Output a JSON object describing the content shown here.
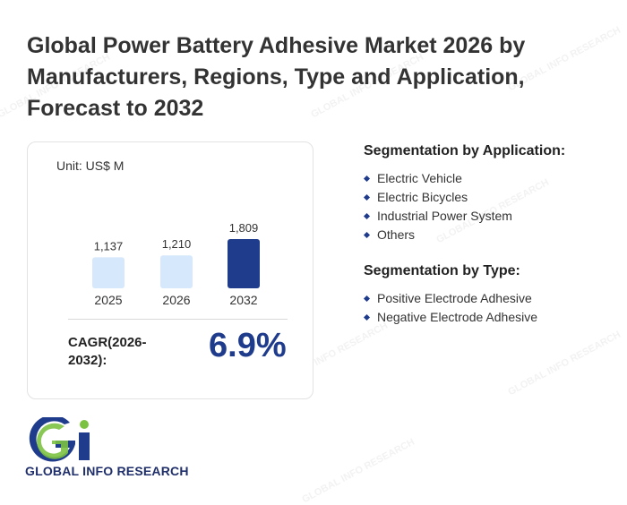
{
  "title": "Global Power Battery Adhesive Market 2026 by Manufacturers, Regions, Type and Application, Forecast to 2032",
  "unit_label": "Unit: US$ M",
  "cagr": {
    "label": "CAGR(2026-2032):",
    "value": "6.9%"
  },
  "chart_data": {
    "type": "bar",
    "categories": [
      "2025",
      "2026",
      "2032"
    ],
    "values": [
      1137,
      1210,
      1809
    ],
    "value_labels": [
      "1,137",
      "1,210",
      "1,809"
    ],
    "title": "",
    "xlabel": "",
    "ylabel": "",
    "bar_colors": [
      "#d6e8fb",
      "#d6e8fb",
      "#1f3b8c"
    ]
  },
  "segmentation": {
    "application": {
      "title": "Segmentation by Application:",
      "items": [
        "Electric Vehicle",
        "Electric Bicycles",
        "Industrial Power System",
        "Others"
      ]
    },
    "type": {
      "title": "Segmentation by Type:",
      "items": [
        "Positive Electrode Adhesive",
        "Negative Electrode Adhesive"
      ]
    }
  },
  "logo": {
    "name": "GLOBAL INFO RESEARCH",
    "watermark": "GLOBAL INFO RESEARCH"
  },
  "colors": {
    "accent": "#1f3b8c",
    "bar_light": "#d6e8fb",
    "logo_green": "#7cc242"
  }
}
